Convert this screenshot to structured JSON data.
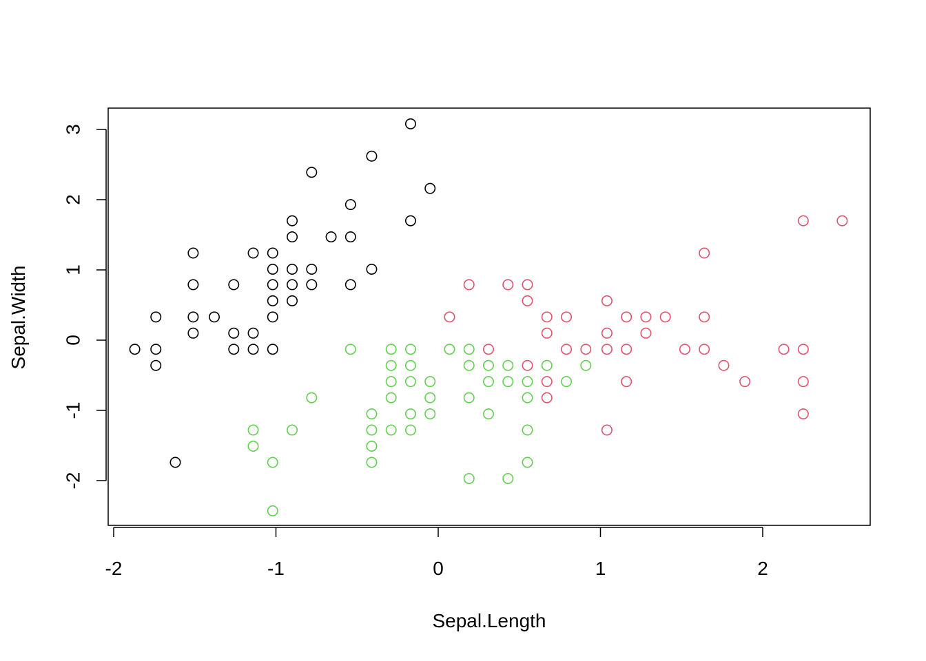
{
  "chart_data": {
    "type": "scatter",
    "title": "",
    "xlabel": "Sepal.Length",
    "ylabel": "Sepal.Width",
    "xlim": [
      -2.0,
      2.6
    ],
    "ylim": [
      -2.6,
      3.3
    ],
    "xticks": [
      -2,
      -1,
      0,
      1,
      2
    ],
    "yticks": [
      -2,
      -1,
      0,
      1,
      2,
      3
    ],
    "xtick_labels": [
      "-2",
      "-1",
      "0",
      "1",
      "2"
    ],
    "ytick_labels": [
      "-2",
      "-1",
      "0",
      "1",
      "2",
      "3"
    ],
    "grid": false,
    "legend": "none",
    "series": [
      {
        "color": "#000000",
        "points": [
          [
            -0.17,
            3.08
          ],
          [
            -0.41,
            2.62
          ],
          [
            -0.78,
            2.39
          ],
          [
            -0.05,
            2.16
          ],
          [
            -0.54,
            1.93
          ],
          [
            -0.17,
            1.7
          ],
          [
            -0.9,
            1.7
          ],
          [
            -0.66,
            1.47
          ],
          [
            -0.9,
            1.47
          ],
          [
            -0.54,
            1.47
          ],
          [
            -1.51,
            1.24
          ],
          [
            -1.14,
            1.24
          ],
          [
            -1.02,
            1.24
          ],
          [
            -1.02,
            1.01
          ],
          [
            -0.9,
            1.01
          ],
          [
            -0.78,
            1.01
          ],
          [
            -0.41,
            1.01
          ],
          [
            -1.51,
            0.79
          ],
          [
            -1.26,
            0.79
          ],
          [
            -1.02,
            0.79
          ],
          [
            -0.9,
            0.79
          ],
          [
            -0.78,
            0.79
          ],
          [
            -0.54,
            0.79
          ],
          [
            -1.02,
            0.56
          ],
          [
            -0.9,
            0.56
          ],
          [
            -1.74,
            0.33
          ],
          [
            -1.51,
            0.33
          ],
          [
            -1.38,
            0.33
          ],
          [
            -1.02,
            0.33
          ],
          [
            -1.51,
            0.1
          ],
          [
            -1.26,
            0.1
          ],
          [
            -1.14,
            0.1
          ],
          [
            -1.87,
            -0.13
          ],
          [
            -1.74,
            -0.13
          ],
          [
            -1.26,
            -0.13
          ],
          [
            -1.14,
            -0.13
          ],
          [
            -1.02,
            -0.13
          ],
          [
            -1.74,
            -0.36
          ],
          [
            -1.62,
            -1.74
          ]
        ]
      },
      {
        "color": "#df536b",
        "points": [
          [
            2.25,
            1.7
          ],
          [
            2.49,
            1.7
          ],
          [
            1.64,
            1.24
          ],
          [
            0.19,
            0.79
          ],
          [
            0.43,
            0.79
          ],
          [
            0.55,
            0.79
          ],
          [
            0.55,
            0.56
          ],
          [
            1.04,
            0.56
          ],
          [
            0.07,
            0.33
          ],
          [
            0.67,
            0.33
          ],
          [
            0.79,
            0.33
          ],
          [
            1.16,
            0.33
          ],
          [
            1.28,
            0.33
          ],
          [
            1.4,
            0.33
          ],
          [
            1.64,
            0.33
          ],
          [
            0.67,
            0.1
          ],
          [
            1.04,
            0.1
          ],
          [
            1.28,
            0.1
          ],
          [
            0.31,
            -0.13
          ],
          [
            0.79,
            -0.13
          ],
          [
            0.91,
            -0.13
          ],
          [
            1.04,
            -0.13
          ],
          [
            1.16,
            -0.13
          ],
          [
            1.52,
            -0.13
          ],
          [
            1.64,
            -0.13
          ],
          [
            2.13,
            -0.13
          ],
          [
            2.25,
            -0.13
          ],
          [
            0.55,
            -0.36
          ],
          [
            1.76,
            -0.36
          ],
          [
            0.67,
            -0.59
          ],
          [
            1.16,
            -0.59
          ],
          [
            1.89,
            -0.59
          ],
          [
            2.25,
            -0.59
          ],
          [
            0.67,
            -0.82
          ],
          [
            2.25,
            -1.05
          ],
          [
            1.04,
            -1.28
          ]
        ]
      },
      {
        "color": "#61d04f",
        "points": [
          [
            -0.54,
            -0.13
          ],
          [
            -0.29,
            -0.13
          ],
          [
            -0.17,
            -0.13
          ],
          [
            0.07,
            -0.13
          ],
          [
            0.19,
            -0.13
          ],
          [
            -0.29,
            -0.36
          ],
          [
            -0.17,
            -0.36
          ],
          [
            0.19,
            -0.36
          ],
          [
            0.31,
            -0.36
          ],
          [
            0.43,
            -0.36
          ],
          [
            0.67,
            -0.36
          ],
          [
            0.91,
            -0.36
          ],
          [
            -0.29,
            -0.59
          ],
          [
            -0.17,
            -0.59
          ],
          [
            -0.05,
            -0.59
          ],
          [
            0.31,
            -0.59
          ],
          [
            0.43,
            -0.59
          ],
          [
            0.55,
            -0.59
          ],
          [
            0.79,
            -0.59
          ],
          [
            -0.78,
            -0.82
          ],
          [
            -0.29,
            -0.82
          ],
          [
            -0.05,
            -0.82
          ],
          [
            0.19,
            -0.82
          ],
          [
            0.55,
            -0.82
          ],
          [
            -0.41,
            -1.05
          ],
          [
            -0.17,
            -1.05
          ],
          [
            -0.05,
            -1.05
          ],
          [
            0.31,
            -1.05
          ],
          [
            -1.14,
            -1.28
          ],
          [
            -0.9,
            -1.28
          ],
          [
            -0.41,
            -1.28
          ],
          [
            -0.29,
            -1.28
          ],
          [
            -0.17,
            -1.28
          ],
          [
            0.55,
            -1.28
          ],
          [
            -1.14,
            -1.51
          ],
          [
            -0.41,
            -1.51
          ],
          [
            -1.02,
            -1.74
          ],
          [
            -0.41,
            -1.74
          ],
          [
            0.55,
            -1.74
          ],
          [
            0.19,
            -1.97
          ],
          [
            0.43,
            -1.97
          ],
          [
            -1.02,
            -2.43
          ]
        ]
      }
    ]
  }
}
